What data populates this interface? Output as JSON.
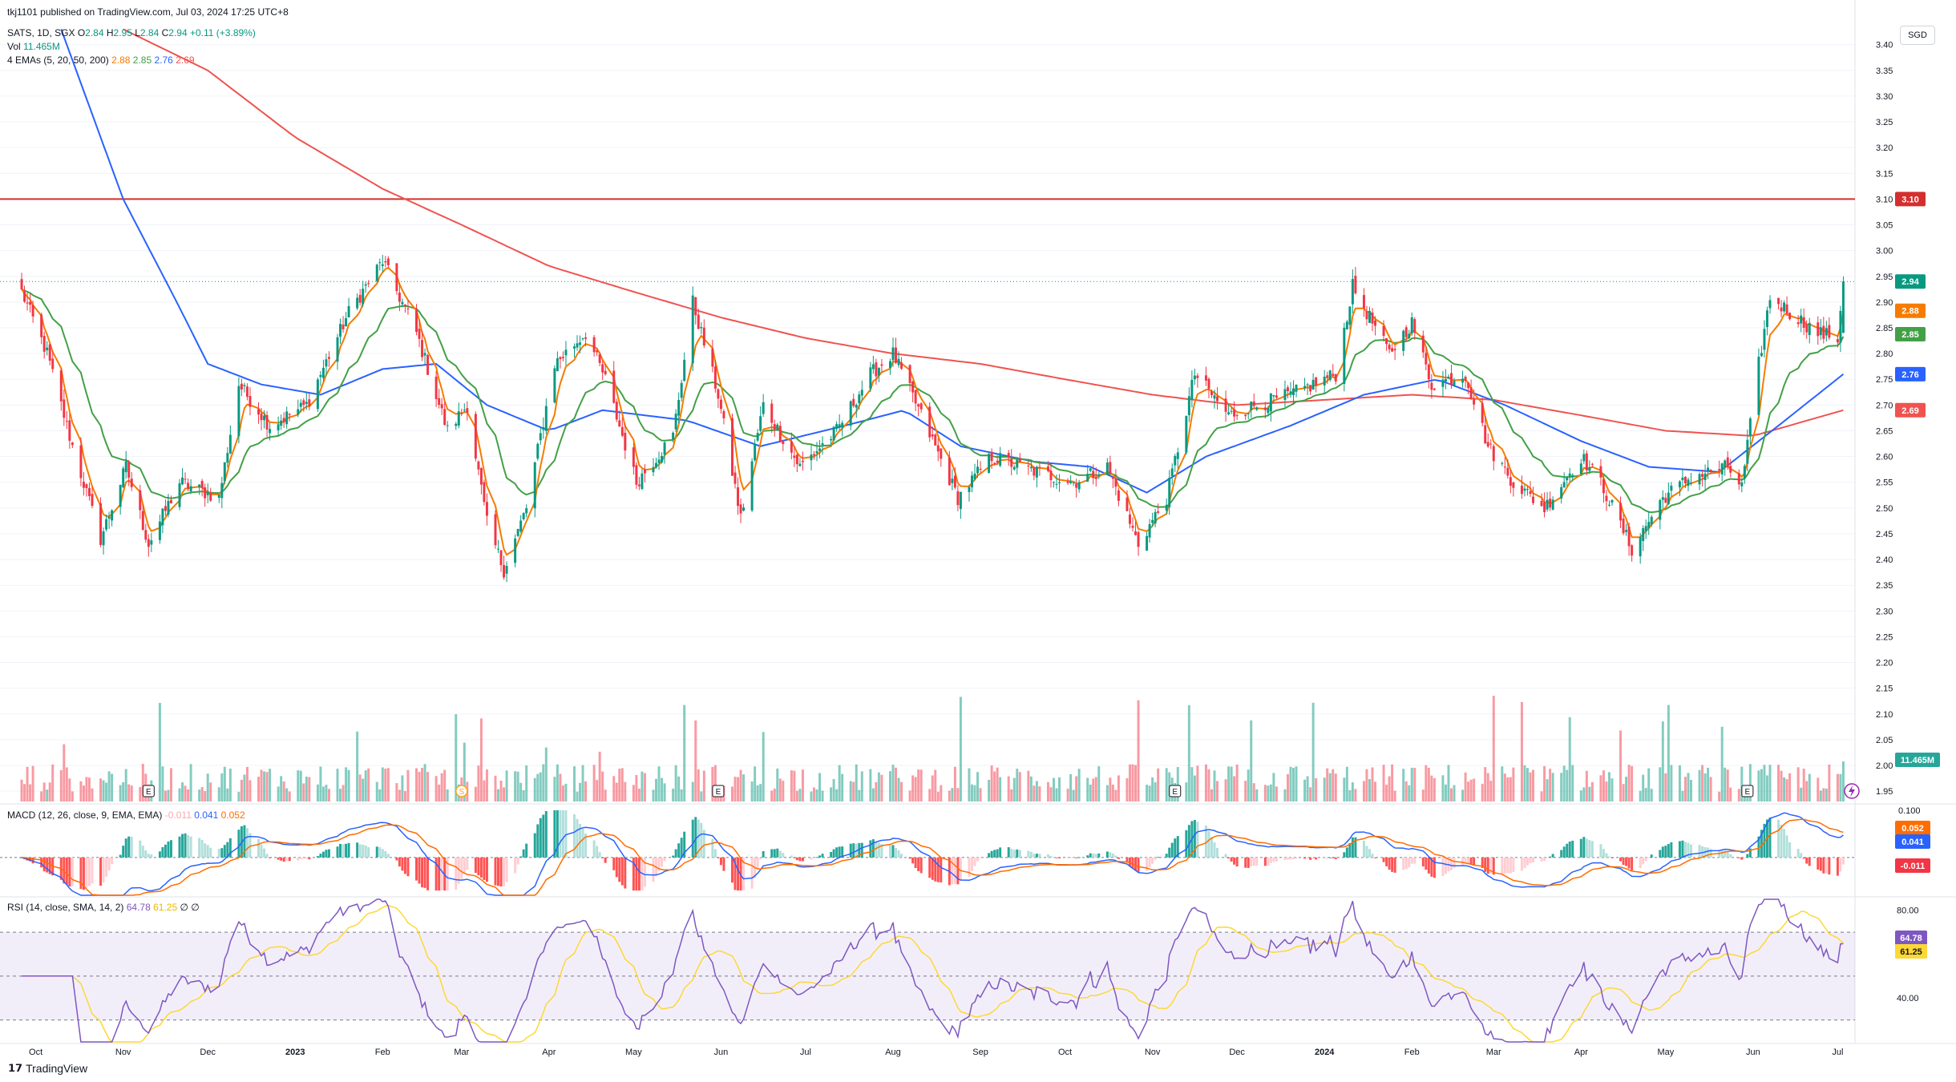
{
  "header": {
    "publisher": "tkj1101 published on TradingView.com, Jul 03, 2024 17:25 UTC+8",
    "symbol": "SATS, 1D, SGX",
    "ohlc": {
      "o_label": "O",
      "o": "2.84",
      "h_label": "H",
      "h": "2.95",
      "l_label": "L",
      "l": "2.84",
      "c_label": "C",
      "c": "2.94",
      "change": "+0.11 (+3.89%)"
    },
    "vol_label": "Vol",
    "vol_value": "11.465M",
    "ema_label": "4 EMAs (5, 20, 50, 200)",
    "ema_values": [
      "2.88",
      "2.85",
      "2.76",
      "2.69"
    ]
  },
  "currency": "SGD",
  "macd_legend": {
    "label": "MACD (12, 26, close, 9, EMA, EMA)",
    "hist": "-0.011",
    "macd": "0.041",
    "signal": "0.052"
  },
  "rsi_legend": {
    "label": "RSI (14, close, SMA, 14, 2)",
    "rsi": "64.78",
    "ma": "61.25",
    "extra": "∅ ∅"
  },
  "footer": {
    "brand": "TradingView"
  },
  "colors": {
    "up": "#089981",
    "down": "#f23645",
    "ema5": "#f57c00",
    "ema20": "#43a047",
    "ema50": "#2962ff",
    "ema200": "#ef5350",
    "resistance": "#d32f2f",
    "macd": "#2962ff",
    "signal": "#ff6d00",
    "rsi": "#7e57c2",
    "rsi_ma": "#fdd835"
  },
  "chart_data": {
    "type": "candlestick",
    "price_axis": {
      "ticks": [
        "3.40",
        "3.35",
        "3.30",
        "3.25",
        "3.20",
        "3.15",
        "3.10",
        "3.05",
        "3.00",
        "2.95",
        "2.90",
        "2.85",
        "2.80",
        "2.75",
        "2.70",
        "2.65",
        "2.60",
        "2.55",
        "2.50",
        "2.45",
        "2.40",
        "2.35",
        "2.30",
        "2.25",
        "2.20",
        "2.15",
        "2.10",
        "2.05",
        "2.00",
        "1.95"
      ],
      "ylim": [
        1.93,
        3.44
      ]
    },
    "x_axis": {
      "labels": [
        "Oct",
        "Nov",
        "Dec",
        "2023",
        "Feb",
        "Mar",
        "Apr",
        "May",
        "Jun",
        "Jul",
        "Aug",
        "Sep",
        "Oct",
        "Nov",
        "Dec",
        "2024",
        "Feb",
        "Mar",
        "Apr",
        "May",
        "Jun",
        "Jul"
      ]
    },
    "resistance_level": 3.1,
    "last_price": 2.94,
    "price_tags": [
      {
        "value": "3.10",
        "color": "#d32f2f"
      },
      {
        "value": "2.94",
        "color": "#089981"
      },
      {
        "value": "2.88",
        "color": "#f57c00"
      },
      {
        "value": "2.85",
        "color": "#43a047"
      },
      {
        "value": "2.76",
        "color": "#2962ff"
      },
      {
        "value": "2.69",
        "color": "#ef5350"
      }
    ],
    "volume_tag": "11.465M",
    "close_anchors": [
      {
        "t": "2022-09-26",
        "v": 2.92
      },
      {
        "t": "2022-10-05",
        "v": 2.8
      },
      {
        "t": "2022-10-14",
        "v": 2.62
      },
      {
        "t": "2022-10-24",
        "v": 2.44
      },
      {
        "t": "2022-11-02",
        "v": 2.58
      },
      {
        "t": "2022-11-10",
        "v": 2.43
      },
      {
        "t": "2022-11-21",
        "v": 2.55
      },
      {
        "t": "2022-12-05",
        "v": 2.52
      },
      {
        "t": "2022-12-12",
        "v": 2.74
      },
      {
        "t": "2022-12-23",
        "v": 2.66
      },
      {
        "t": "2023-01-05",
        "v": 2.7
      },
      {
        "t": "2023-01-20",
        "v": 2.88
      },
      {
        "t": "2023-02-01",
        "v": 2.98
      },
      {
        "t": "2023-02-13",
        "v": 2.84
      },
      {
        "t": "2023-02-24",
        "v": 2.65
      },
      {
        "t": "2023-03-03",
        "v": 2.7
      },
      {
        "t": "2023-03-10",
        "v": 2.47
      },
      {
        "t": "2023-03-16",
        "v": 2.38
      },
      {
        "t": "2023-03-24",
        "v": 2.5
      },
      {
        "t": "2023-04-03",
        "v": 2.78
      },
      {
        "t": "2023-04-14",
        "v": 2.84
      },
      {
        "t": "2023-04-21",
        "v": 2.75
      },
      {
        "t": "2023-05-02",
        "v": 2.55
      },
      {
        "t": "2023-05-15",
        "v": 2.64
      },
      {
        "t": "2023-05-22",
        "v": 2.9
      },
      {
        "t": "2023-05-31",
        "v": 2.72
      },
      {
        "t": "2023-06-08",
        "v": 2.48
      },
      {
        "t": "2023-06-16",
        "v": 2.7
      },
      {
        "t": "2023-06-29",
        "v": 2.58
      },
      {
        "t": "2023-07-12",
        "v": 2.65
      },
      {
        "t": "2023-07-24",
        "v": 2.76
      },
      {
        "t": "2023-08-01",
        "v": 2.8
      },
      {
        "t": "2023-08-11",
        "v": 2.68
      },
      {
        "t": "2023-08-24",
        "v": 2.52
      },
      {
        "t": "2023-09-05",
        "v": 2.6
      },
      {
        "t": "2023-09-21",
        "v": 2.57
      },
      {
        "t": "2023-10-04",
        "v": 2.55
      },
      {
        "t": "2023-10-16",
        "v": 2.58
      },
      {
        "t": "2023-10-27",
        "v": 2.43
      },
      {
        "t": "2023-11-06",
        "v": 2.52
      },
      {
        "t": "2023-11-16",
        "v": 2.76
      },
      {
        "t": "2023-11-28",
        "v": 2.68
      },
      {
        "t": "2023-12-08",
        "v": 2.7
      },
      {
        "t": "2023-12-20",
        "v": 2.72
      },
      {
        "t": "2024-01-05",
        "v": 2.76
      },
      {
        "t": "2024-01-11",
        "v": 2.93
      },
      {
        "t": "2024-01-24",
        "v": 2.8
      },
      {
        "t": "2024-02-01",
        "v": 2.86
      },
      {
        "t": "2024-02-08",
        "v": 2.74
      },
      {
        "t": "2024-02-20",
        "v": 2.76
      },
      {
        "t": "2024-02-28",
        "v": 2.62
      },
      {
        "t": "2024-03-08",
        "v": 2.55
      },
      {
        "t": "2024-03-19",
        "v": 2.5
      },
      {
        "t": "2024-04-01",
        "v": 2.6
      },
      {
        "t": "2024-04-08",
        "v": 2.55
      },
      {
        "t": "2024-04-19",
        "v": 2.42
      },
      {
        "t": "2024-04-30",
        "v": 2.52
      },
      {
        "t": "2024-05-10",
        "v": 2.56
      },
      {
        "t": "2024-05-23",
        "v": 2.58
      },
      {
        "t": "2024-05-28",
        "v": 2.54
      },
      {
        "t": "2024-06-03",
        "v": 2.78
      },
      {
        "t": "2024-06-07",
        "v": 2.91
      },
      {
        "t": "2024-06-14",
        "v": 2.88
      },
      {
        "t": "2024-06-24",
        "v": 2.84
      },
      {
        "t": "2024-07-01",
        "v": 2.83
      },
      {
        "t": "2024-07-03",
        "v": 2.94
      }
    ],
    "ema200_anchors": [
      {
        "t": "2022-11-01",
        "v": 3.43
      },
      {
        "t": "2022-12-01",
        "v": 3.35
      },
      {
        "t": "2023-01-01",
        "v": 3.22
      },
      {
        "t": "2023-02-01",
        "v": 3.12
      },
      {
        "t": "2023-03-01",
        "v": 3.05
      },
      {
        "t": "2023-04-01",
        "v": 2.97
      },
      {
        "t": "2023-05-01",
        "v": 2.92
      },
      {
        "t": "2023-06-01",
        "v": 2.87
      },
      {
        "t": "2023-07-01",
        "v": 2.83
      },
      {
        "t": "2023-08-01",
        "v": 2.8
      },
      {
        "t": "2023-09-01",
        "v": 2.78
      },
      {
        "t": "2023-10-01",
        "v": 2.75
      },
      {
        "t": "2023-11-01",
        "v": 2.72
      },
      {
        "t": "2023-12-01",
        "v": 2.7
      },
      {
        "t": "2024-01-01",
        "v": 2.71
      },
      {
        "t": "2024-02-01",
        "v": 2.72
      },
      {
        "t": "2024-03-01",
        "v": 2.71
      },
      {
        "t": "2024-04-01",
        "v": 2.68
      },
      {
        "t": "2024-05-01",
        "v": 2.65
      },
      {
        "t": "2024-06-01",
        "v": 2.64
      },
      {
        "t": "2024-07-03",
        "v": 2.69
      }
    ],
    "ema50_anchors": [
      {
        "t": "2022-10-10",
        "v": 3.43
      },
      {
        "t": "2022-11-01",
        "v": 3.1
      },
      {
        "t": "2022-11-20",
        "v": 2.9
      },
      {
        "t": "2022-12-01",
        "v": 2.78
      },
      {
        "t": "2022-12-20",
        "v": 2.74
      },
      {
        "t": "2023-01-10",
        "v": 2.72
      },
      {
        "t": "2023-02-01",
        "v": 2.77
      },
      {
        "t": "2023-02-20",
        "v": 2.78
      },
      {
        "t": "2023-03-10",
        "v": 2.7
      },
      {
        "t": "2023-04-01",
        "v": 2.65
      },
      {
        "t": "2023-04-20",
        "v": 2.69
      },
      {
        "t": "2023-05-20",
        "v": 2.67
      },
      {
        "t": "2023-06-15",
        "v": 2.62
      },
      {
        "t": "2023-07-15",
        "v": 2.66
      },
      {
        "t": "2023-08-05",
        "v": 2.69
      },
      {
        "t": "2023-08-25",
        "v": 2.62
      },
      {
        "t": "2023-09-20",
        "v": 2.59
      },
      {
        "t": "2023-10-10",
        "v": 2.58
      },
      {
        "t": "2023-10-30",
        "v": 2.53
      },
      {
        "t": "2023-11-20",
        "v": 2.6
      },
      {
        "t": "2023-12-20",
        "v": 2.66
      },
      {
        "t": "2024-01-15",
        "v": 2.72
      },
      {
        "t": "2024-02-10",
        "v": 2.75
      },
      {
        "t": "2024-03-05",
        "v": 2.7
      },
      {
        "t": "2024-04-01",
        "v": 2.63
      },
      {
        "t": "2024-04-25",
        "v": 2.58
      },
      {
        "t": "2024-05-20",
        "v": 2.57
      },
      {
        "t": "2024-06-10",
        "v": 2.66
      },
      {
        "t": "2024-07-03",
        "v": 2.76
      }
    ],
    "rsi_axis": {
      "ticks": [
        "80.00",
        "40.00"
      ],
      "ylim": [
        20,
        85
      ],
      "bands": [
        30,
        50,
        70
      ]
    },
    "rsi_last": 64.78,
    "rsi_ma_last": 61.25,
    "macd_axis": {
      "ticks": [
        "0.100"
      ],
      "ylim": [
        -0.08,
        0.11
      ]
    },
    "macd_tags": [
      {
        "value": "0.052",
        "color": "#ff6d00"
      },
      {
        "value": "0.041",
        "color": "#2962ff"
      },
      {
        "value": "-0.011",
        "color": "#f23645"
      }
    ],
    "earnings_markers": [
      "2022-11-10",
      "2023-05-31",
      "2023-11-09",
      "2024-05-30"
    ],
    "dividend_marker": "2023-03-01"
  }
}
